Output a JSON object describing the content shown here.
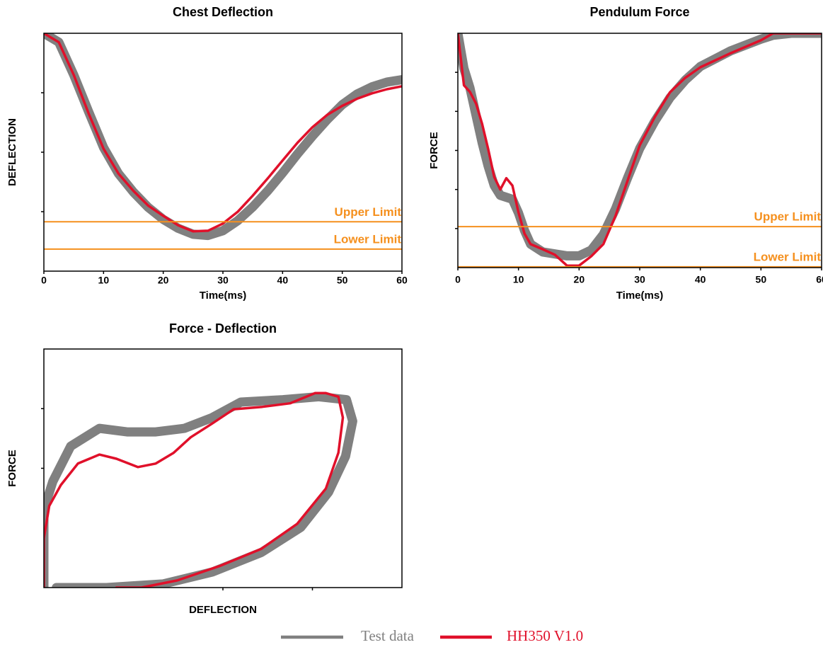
{
  "chart_data": [
    {
      "type": "line",
      "title": "Chest Deflection",
      "xlabel": "Time(ms)",
      "ylabel": "DEFLECTION",
      "x": [
        0,
        2.5,
        5,
        7.5,
        10,
        12.5,
        15,
        17.5,
        20,
        22.5,
        25,
        27.5,
        30,
        32.5,
        35,
        37.5,
        40,
        42.5,
        45,
        47.5,
        50,
        52.5,
        55,
        57.5,
        60
      ],
      "series": [
        {
          "color": "#808080",
          "values": [
            4.0,
            3.85,
            3.3,
            2.68,
            2.08,
            1.64,
            1.33,
            1.07,
            0.87,
            0.72,
            0.62,
            0.6,
            0.68,
            0.85,
            1.08,
            1.35,
            1.65,
            1.97,
            2.27,
            2.55,
            2.8,
            2.98,
            3.1,
            3.18,
            3.22
          ]
        },
        {
          "color": "#e0102a",
          "values": [
            4.0,
            3.85,
            3.3,
            2.65,
            2.06,
            1.64,
            1.35,
            1.1,
            0.93,
            0.77,
            0.67,
            0.68,
            0.8,
            1.0,
            1.27,
            1.56,
            1.86,
            2.16,
            2.42,
            2.63,
            2.78,
            2.9,
            2.99,
            3.06,
            3.11
          ]
        }
      ],
      "limits": [
        {
          "label": "Upper Limit",
          "value": 0.83,
          "color": "#f5901e"
        },
        {
          "label": "Lower Limit",
          "value": 0.37,
          "color": "#f5901e"
        }
      ],
      "xlim": [
        0,
        60
      ],
      "xticks": [
        0,
        10,
        20,
        30,
        40,
        50,
        60
      ],
      "ylim": [
        0,
        4
      ],
      "yticks": [
        1,
        2,
        3
      ],
      "show_xtick_labels": true,
      "show_ytick_labels": false
    },
    {
      "type": "line",
      "title": "Pendulum Force",
      "xlabel": "Time(ms)",
      "ylabel": "FORCE",
      "x": [
        0,
        1,
        2,
        3,
        4,
        5,
        6,
        7,
        8,
        9,
        10,
        11,
        12,
        14,
        16,
        18,
        20,
        22,
        24,
        26,
        28,
        30,
        32.5,
        35,
        37.5,
        40,
        45,
        50,
        52,
        55,
        60
      ],
      "series": [
        {
          "color": "#808080",
          "values": [
            6.0,
            5.1,
            4.6,
            3.9,
            3.2,
            2.6,
            2.1,
            1.85,
            1.8,
            1.75,
            1.4,
            0.95,
            0.6,
            0.4,
            0.35,
            0.3,
            0.3,
            0.45,
            0.85,
            1.5,
            2.3,
            3.05,
            3.75,
            4.35,
            4.8,
            5.15,
            5.55,
            5.85,
            5.95,
            6.0,
            6.0
          ]
        },
        {
          "color": "#e0102a",
          "values": [
            6.0,
            4.67,
            4.5,
            4.2,
            3.68,
            3.04,
            2.32,
            2.0,
            2.29,
            2.1,
            1.41,
            0.87,
            0.6,
            0.47,
            0.33,
            0.05,
            0.05,
            0.29,
            0.6,
            1.32,
            2.23,
            3.13,
            3.86,
            4.49,
            4.86,
            5.13,
            5.49,
            5.82,
            6.0,
            6.0,
            6.0
          ]
        }
      ],
      "limits": [
        {
          "label": "Upper Limit",
          "value": 1.05,
          "color": "#f5901e"
        },
        {
          "label": "Lower Limit",
          "value": 0.02,
          "color": "#f5901e"
        }
      ],
      "xlim": [
        0,
        60
      ],
      "xticks": [
        0,
        10,
        20,
        30,
        40,
        50,
        60
      ],
      "ylim": [
        0,
        6
      ],
      "yticks": [
        1,
        2,
        3,
        4,
        5
      ],
      "show_xtick_labels": true,
      "show_ytick_labels": false
    },
    {
      "type": "xyline",
      "title": "Force - Deflection",
      "xlabel": "DEFLECTION",
      "ylabel": "FORCE",
      "series": [
        {
          "color": "#808080",
          "x": [
            0,
            0,
            0.1,
            0.3,
            0.62,
            0.93,
            1.25,
            1.57,
            1.88,
            2.2,
            2.67,
            3.07,
            3.38,
            3.45,
            3.37,
            3.18,
            2.87,
            2.43,
            1.88,
            1.33,
            0.7,
            0.14
          ],
          "values": [
            0,
            1.31,
            1.78,
            2.37,
            2.67,
            2.61,
            2.61,
            2.67,
            2.85,
            3.11,
            3.15,
            3.2,
            3.15,
            2.79,
            2.2,
            1.6,
            1.01,
            0.59,
            0.26,
            0.06,
            0,
            0
          ]
        },
        {
          "color": "#e0102a",
          "x": [
            0,
            0,
            0.06,
            0.19,
            0.38,
            0.62,
            0.81,
            1.05,
            1.25,
            1.45,
            1.64,
            1.88,
            2.12,
            2.44,
            2.75,
            3.03,
            3.15,
            3.29,
            3.34,
            3.29,
            3.15,
            2.83,
            2.43,
            1.96,
            1.49,
            1.09,
            0.81
          ],
          "values": [
            0,
            0.83,
            1.37,
            1.72,
            2.08,
            2.23,
            2.16,
            2.02,
            2.08,
            2.26,
            2.52,
            2.75,
            2.99,
            3.03,
            3.09,
            3.26,
            3.26,
            3.2,
            2.85,
            2.26,
            1.66,
            1.07,
            0.65,
            0.36,
            0.12,
            0,
            0
          ]
        }
      ],
      "xlim": [
        0,
        4
      ],
      "xticks": [
        2,
        3
      ],
      "ylim": [
        0,
        4
      ],
      "yticks": [
        2,
        3
      ],
      "show_xtick_labels": false,
      "show_ytick_labels": false
    }
  ],
  "legend": [
    {
      "name": "Test data",
      "color": "#808080"
    },
    {
      "name": "HH350 V1.0",
      "color": "#e0102a"
    }
  ]
}
